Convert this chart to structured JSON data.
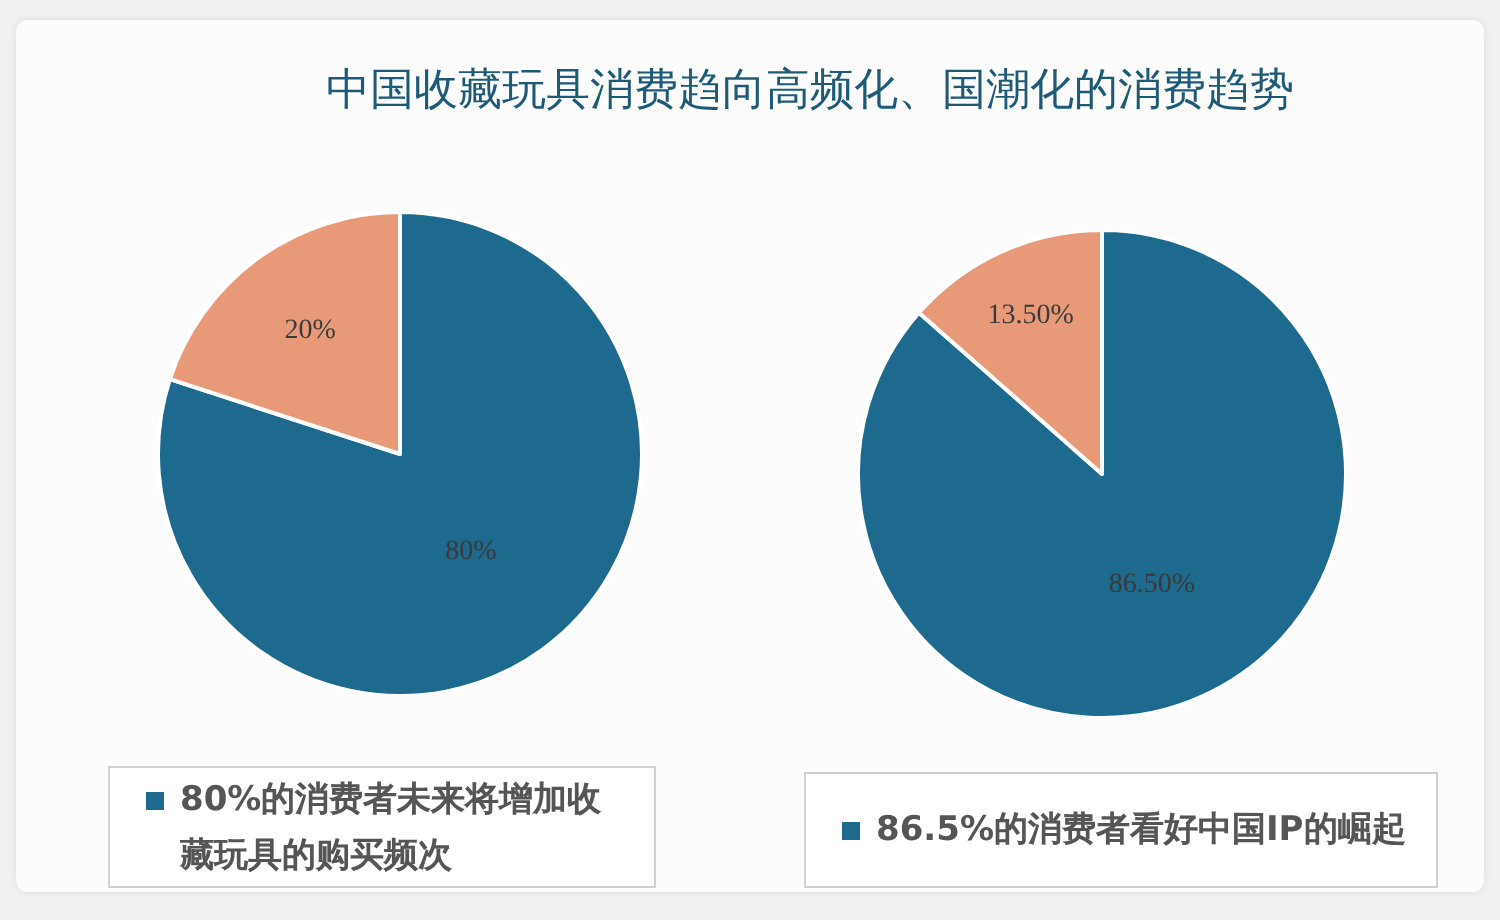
{
  "chart_data": [
    {
      "type": "pie",
      "title": "中国收藏玩具消费趋向高频化、国潮化的消费趋势",
      "categories": [
        "80%的消费者未来将增加收藏玩具的购买频次",
        null
      ],
      "values": [
        80,
        20
      ],
      "colors": [
        "#1d6a8e",
        "#e89a78"
      ],
      "value_labels": [
        "80%",
        "20%"
      ],
      "legend": "bottom"
    },
    {
      "type": "pie",
      "categories": [
        "86.5%的消费者看好中国IP的崛起",
        null
      ],
      "values": [
        86.5,
        13.5
      ],
      "colors": [
        "#1d6a8e",
        "#e89a78"
      ],
      "value_labels": [
        "86.50%",
        "13.50%"
      ],
      "legend": "bottom"
    }
  ]
}
